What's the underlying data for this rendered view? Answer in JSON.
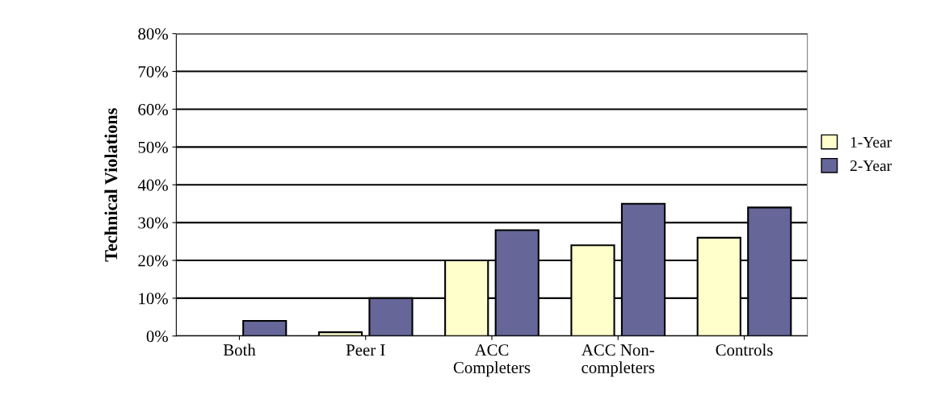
{
  "chart_data": {
    "type": "bar",
    "ylabel": "Technical Violations",
    "categories": [
      "Both",
      "Peer I",
      "ACC\nCompleters",
      "ACC Non-\ncompleters",
      "Controls"
    ],
    "series": [
      {
        "name": "1-Year",
        "color": "#ffffcc",
        "values": [
          0,
          0.01,
          0.2,
          0.24,
          0.26
        ]
      },
      {
        "name": "2-Year",
        "color": "#666699",
        "values": [
          0.04,
          0.1,
          0.28,
          0.35,
          0.34
        ]
      }
    ],
    "ylim": [
      0,
      0.8
    ],
    "yticks": [
      {
        "value": 0,
        "label": "0%"
      },
      {
        "value": 0.1,
        "label": "10%"
      },
      {
        "value": 0.2,
        "label": "20%"
      },
      {
        "value": 0.3,
        "label": "30%"
      },
      {
        "value": 0.4,
        "label": "40%"
      },
      {
        "value": 0.5,
        "label": "50%"
      },
      {
        "value": 0.6,
        "label": "60%"
      },
      {
        "value": 0.7,
        "label": "70%"
      },
      {
        "value": 0.8,
        "label": "80%"
      }
    ],
    "grid": "y",
    "legend": "right"
  }
}
